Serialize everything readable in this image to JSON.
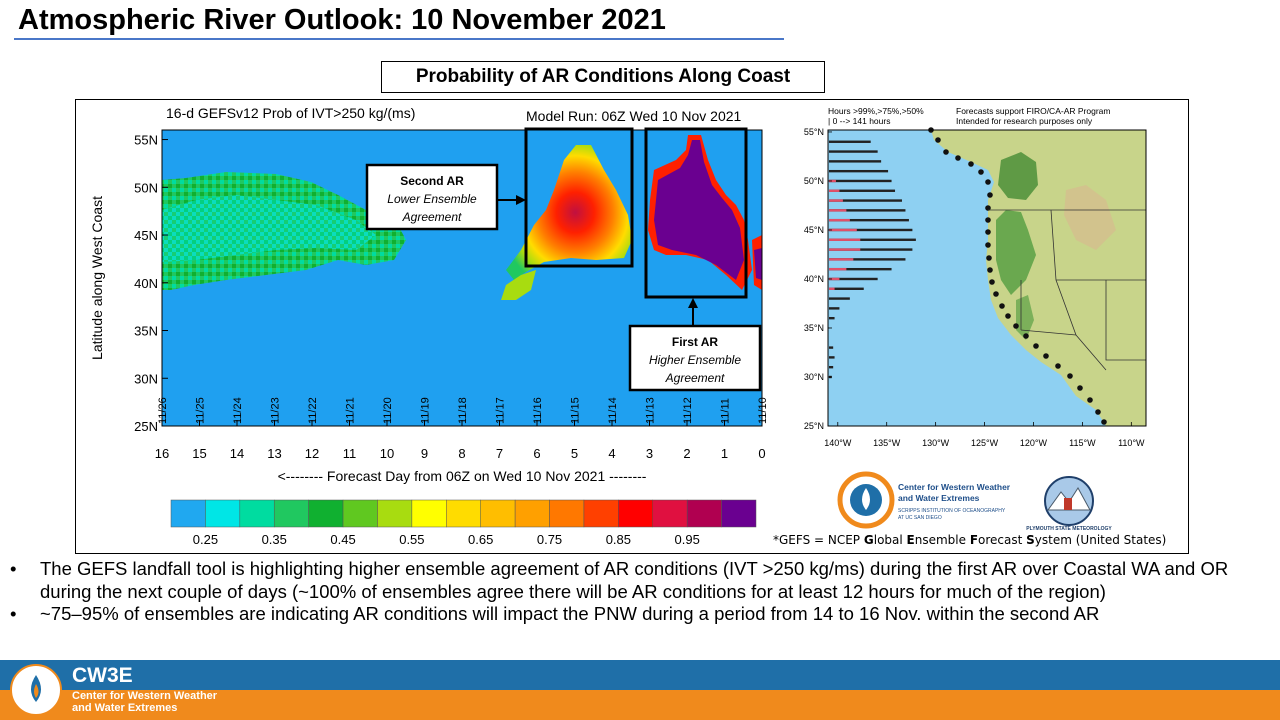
{
  "slide": {
    "title": "Atmospheric River Outlook: 10 November 2021",
    "panel_title": "Probability of AR Conditions Along Coast"
  },
  "chart_data": [
    {
      "type": "heatmap",
      "title": "16-d GEFSv12 Prob of IVT>250 kg/(ms)",
      "subtitle": "Model Run: 06Z Wed 10 Nov 2021",
      "xlabel": "<-------- Forecast Day from 06Z on Wed 10 Nov 2021 --------",
      "ylabel": "Latitude along West Coast",
      "x_ticks": [
        "16",
        "15",
        "14",
        "13",
        "12",
        "11",
        "10",
        "9",
        "8",
        "7",
        "6",
        "5",
        "4",
        "3",
        "2",
        "1",
        "0"
      ],
      "x_values": [
        16,
        15,
        14,
        13,
        12,
        11,
        10,
        9,
        8,
        7,
        6,
        5,
        4,
        3,
        2,
        1,
        0
      ],
      "date_ticks": [
        "11/26",
        "11/25",
        "11/24",
        "11/23",
        "11/22",
        "11/21",
        "11/20",
        "11/19",
        "11/18",
        "11/17",
        "11/16",
        "11/15",
        "11/14",
        "11/13",
        "11/12",
        "11/11",
        "11/10"
      ],
      "y_ticks": [
        "55N",
        "50N",
        "45N",
        "40N",
        "35N",
        "30N",
        "25N"
      ],
      "y_values": [
        55,
        50,
        45,
        40,
        35,
        30,
        25
      ],
      "xlim": [
        16,
        0
      ],
      "ylim": [
        25,
        56
      ],
      "colorbar": {
        "labels": [
          "0.25",
          "0.35",
          "0.45",
          "0.55",
          "0.65",
          "0.75",
          "0.85",
          "0.95"
        ],
        "colors": [
          "#20a8f0",
          "#00e6e6",
          "#00dca0",
          "#20c860",
          "#10b030",
          "#60c820",
          "#a8dc10",
          "#ffff00",
          "#ffdc00",
          "#ffbe00",
          "#ffa000",
          "#ff7800",
          "#ff4000",
          "#ff0000",
          "#e01040",
          "#b00050",
          "#6a0090"
        ]
      },
      "regions": [
        {
          "name": "low-probability west",
          "x": [
            16,
            10.5
          ],
          "lat": [
            38,
            51
          ],
          "approx_prob": 0.4
        },
        {
          "name": "second AR",
          "x": [
            6.3,
            3.3
          ],
          "lat": [
            41.5,
            54
          ],
          "approx_prob": 0.8
        },
        {
          "name": "first AR",
          "x": [
            3.0,
            0.3
          ],
          "lat": [
            38.5,
            55
          ],
          "approx_prob": 0.99
        }
      ],
      "annotations": [
        {
          "name": "second-ar",
          "title": "Second AR",
          "line1": "Lower Ensemble",
          "line2": "Agreement"
        },
        {
          "name": "first-ar",
          "title": "First AR",
          "line1": "Higher Ensemble",
          "line2": "Agreement"
        }
      ]
    },
    {
      "type": "bar",
      "title": "Hours >99%,>75%,>50%",
      "subtitle": "| 0 --> 141 hours",
      "note1": "Forecasts support FIRO/CA-AR Program",
      "note2": "Intended for research purposes only",
      "x_ticks": [
        "140°W",
        "135°W",
        "130°W",
        "125°W",
        "120°W",
        "115°W",
        "110°W"
      ],
      "y_ticks": [
        "55°N",
        "50°N",
        "45°N",
        "40°N",
        "35°N",
        "30°N",
        "25°N"
      ],
      "bar_axis": "latitude",
      "bar_values": {
        "lat": [
          54,
          53,
          52,
          51,
          50,
          49,
          48,
          47,
          46,
          45,
          44,
          43,
          42,
          41,
          40,
          39,
          38,
          37,
          36,
          35,
          34,
          33,
          32,
          31,
          30,
          29,
          28,
          27,
          26
        ],
        "hours_gt50": [
          60,
          70,
          75,
          85,
          90,
          95,
          105,
          110,
          115,
          120,
          125,
          120,
          110,
          90,
          70,
          50,
          30,
          15,
          8,
          0,
          0,
          6,
          8,
          6,
          4,
          0,
          0,
          0,
          0
        ],
        "hours_gt99": [
          0,
          0,
          0,
          0,
          10,
          15,
          20,
          25,
          30,
          40,
          45,
          45,
          35,
          25,
          15,
          8,
          0,
          0,
          0,
          0,
          0,
          0,
          0,
          0,
          0,
          0,
          0,
          0,
          0
        ]
      }
    }
  ],
  "footnote": {
    "pre": "*GEFS = NCEP ",
    "g": "G",
    "g_rest": "lobal ",
    "e": "E",
    "e_rest": "nsemble ",
    "f": "F",
    "f_rest": "orecast ",
    "s": "S",
    "s_rest": "ystem (United States)"
  },
  "logos": {
    "cw3e_line1": "Center for Western Weather",
    "cw3e_line2": "and Water Extremes",
    "cw3e_line3": "SCRIPPS INSTITUTION OF OCEANOGRAPHY",
    "cw3e_line4": "AT UC SAN DIEGO",
    "psu": "PLYMOUTH STATE METEOROLOGY"
  },
  "bullets": [
    "The GEFS landfall tool is highlighting higher ensemble agreement of AR conditions (IVT >250 kg/ms) during the first AR over Coastal WA and OR during the next couple of days (~100% of ensembles agree there will be AR conditions for at least 12 hours for much of the region)",
    "~75–95% of ensembles are indicating AR conditions will impact the PNW during a period from 14 to 16 Nov. within the second AR"
  ],
  "footer": {
    "brand": "CW3E",
    "line1": "Center for Western Weather",
    "line2": "and Water Extremes"
  },
  "colors": {
    "background_blue": "#1fa0f0",
    "title_rule": "#4a77c8",
    "footer_blue": "#1f6fa8",
    "footer_orange": "#f08a1c"
  }
}
